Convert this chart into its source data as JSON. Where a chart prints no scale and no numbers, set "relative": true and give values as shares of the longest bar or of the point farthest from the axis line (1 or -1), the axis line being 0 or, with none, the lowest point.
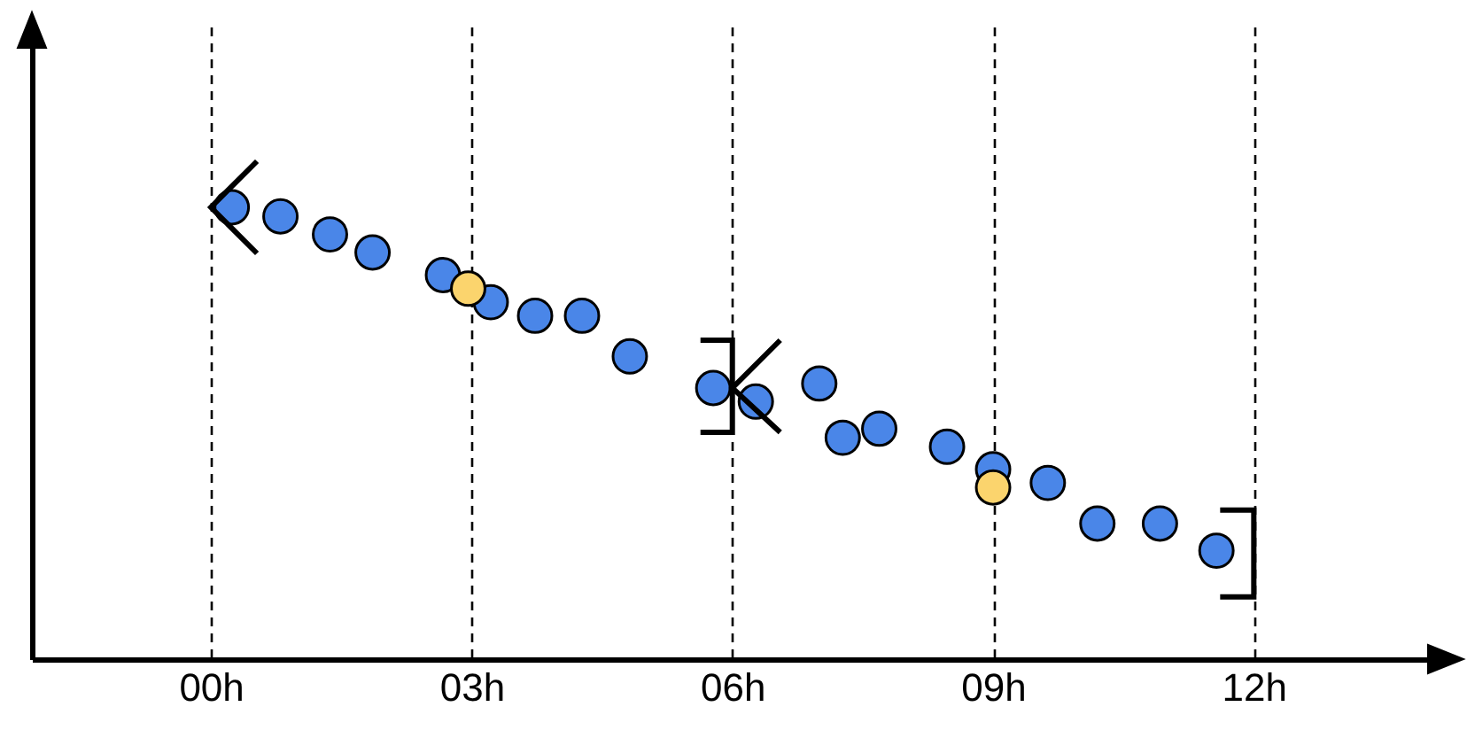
{
  "chart_data": {
    "type": "scatter",
    "relative": true,
    "xlim": [
      -2.06,
      14.29
    ],
    "xticks": [
      {
        "value": 0,
        "label": "00h"
      },
      {
        "value": 3,
        "label": "03h"
      },
      {
        "value": 6,
        "label": "06h"
      },
      {
        "value": 9,
        "label": "09h"
      },
      {
        "value": 12,
        "label": "12h"
      }
    ],
    "grid": "x",
    "tick_labels": "x",
    "marker": "circle",
    "series": [
      {
        "color": "#4a86e8",
        "x": [
          0.24,
          0.8,
          1.37,
          1.86,
          2.67,
          3.22,
          3.73,
          4.27,
          4.82,
          5.78,
          6.27,
          7.0,
          7.27,
          7.69,
          8.47,
          9.0,
          9.63,
          10.2,
          10.92,
          11.57
        ],
        "values": [
          1.0,
          0.98,
          0.94,
          0.9,
          0.85,
          0.79,
          0.76,
          0.76,
          0.67,
          0.6,
          0.57,
          0.61,
          0.49,
          0.51,
          0.47,
          0.42,
          0.39,
          0.3,
          0.3,
          0.24
        ]
      },
      {
        "color": "#fbd46d",
        "x": [
          2.96,
          9.0
        ],
        "values": [
          0.82,
          0.38
        ]
      }
    ]
  }
}
